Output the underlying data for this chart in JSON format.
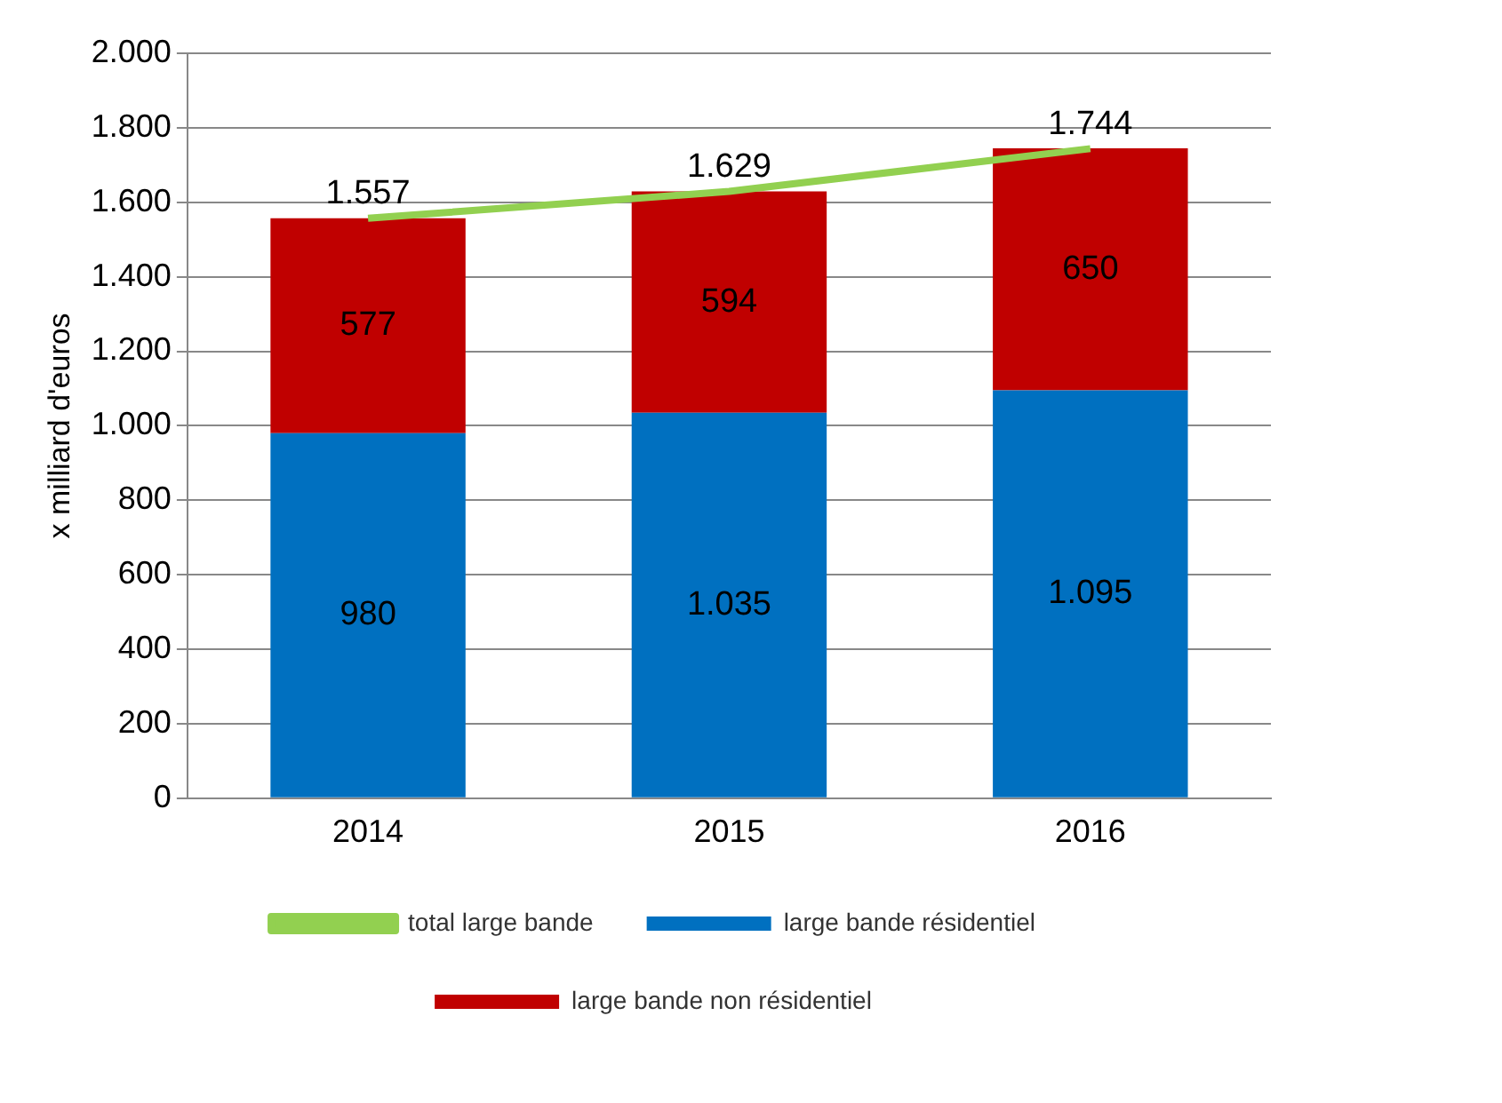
{
  "chart_data": {
    "type": "bar",
    "stacked": true,
    "ylabel": "x milliard d'euros",
    "categories": [
      "2014",
      "2015",
      "2016"
    ],
    "series": [
      {
        "name": "large bande résidentiel",
        "color": "#0070c0",
        "values": [
          980,
          1035,
          1095
        ],
        "value_labels": [
          "980",
          "1.035",
          "1.095"
        ]
      },
      {
        "name": "large bande non résidentiel",
        "color": "#c00000",
        "values": [
          577,
          594,
          650
        ],
        "value_labels": [
          "577",
          "594",
          "650"
        ]
      },
      {
        "name": "total large bande",
        "type": "line",
        "color": "#92d050",
        "marker": "none",
        "values": [
          1557,
          1629,
          1744
        ],
        "value_labels": [
          "1.557",
          "1.629",
          "1.744"
        ]
      }
    ],
    "ylim": [
      0,
      2000
    ],
    "yticks": [
      0,
      200,
      400,
      600,
      800,
      {
        "value": 1000,
        "label": "1.000"
      },
      {
        "value": 1200,
        "label": "1.200"
      },
      {
        "value": 1400,
        "label": "1.400"
      },
      {
        "value": 1600,
        "label": "1.600"
      },
      {
        "value": 1800,
        "label": "1.800"
      },
      {
        "value": 2000,
        "label": "2.000"
      }
    ],
    "grid": "y",
    "legend": "bottom"
  }
}
